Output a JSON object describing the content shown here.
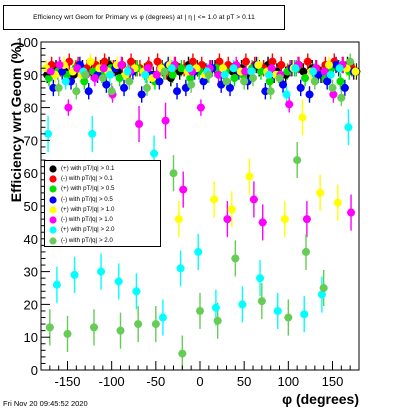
{
  "chart_data": {
    "type": "scatter",
    "title": "Efficiency wrt Geom for Primary vs φ (degrees) at | η | <= 1.0 at pT > 0.11",
    "xlabel": "φ (degrees)",
    "ylabel": "Efficiency wrt Geom (%)",
    "xlim": [
      -180,
      180
    ],
    "ylim": [
      0,
      100
    ],
    "xticks": [
      -150,
      -100,
      -50,
      0,
      50,
      100,
      150
    ],
    "yticks": [
      0,
      10,
      20,
      30,
      40,
      50,
      60,
      70,
      80,
      90,
      100
    ],
    "legend_position": "left-middle",
    "grid": false,
    "series": [
      {
        "name": "(+) with pT/|q| > 0.1",
        "color": "#000000",
        "marker": "circle",
        "x": [
          -173,
          -163,
          -153,
          -143,
          -133,
          -123,
          -113,
          -103,
          -93,
          -83,
          -73,
          -63,
          -53,
          -43,
          -33,
          -23,
          -13,
          -3,
          7,
          17,
          27,
          37,
          47,
          57,
          67,
          77,
          87,
          97,
          107,
          117,
          127,
          137,
          147,
          157,
          167,
          177
        ],
        "y": [
          90,
          92,
          91,
          90,
          92,
          91,
          92,
          93,
          91,
          90,
          92,
          91,
          90,
          92,
          89,
          91,
          93,
          92,
          91,
          92,
          90,
          91,
          92,
          90,
          92,
          93,
          91,
          90,
          92,
          91,
          92,
          90,
          91,
          92,
          93,
          91
        ]
      },
      {
        "name": "(-) with pT/|q| > 0.1",
        "color": "#ff0000",
        "marker": "circle",
        "x": [
          -168,
          -158,
          -148,
          -138,
          -128,
          -118,
          -108,
          -98,
          -88,
          -78,
          -68,
          -58,
          -48,
          -38,
          -28,
          -18,
          -8,
          2,
          12,
          22,
          32,
          42,
          52,
          62,
          72,
          82,
          92,
          102,
          112,
          122,
          132,
          142,
          152,
          162,
          172
        ],
        "y": [
          93,
          92,
          94,
          93,
          92,
          93,
          94,
          92,
          93,
          94,
          92,
          93,
          94,
          91,
          93,
          92,
          94,
          93,
          92,
          94,
          93,
          92,
          94,
          93,
          92,
          94,
          93,
          92,
          93,
          94,
          92,
          93,
          94,
          93,
          92
        ]
      },
      {
        "name": "(+) with pT/|q| > 0.5",
        "color": "#00e000",
        "marker": "circle",
        "x": [
          -171,
          -161,
          -151,
          -141,
          -131,
          -121,
          -111,
          -101,
          -91,
          -81,
          -71,
          -61,
          -51,
          -41,
          -31,
          -21,
          -11,
          -1,
          9,
          19,
          29,
          39,
          49,
          59,
          69,
          79,
          89,
          99,
          109,
          119,
          129,
          139,
          149,
          159,
          169
        ],
        "y": [
          89,
          91,
          90,
          92,
          88,
          91,
          90,
          92,
          89,
          91,
          92,
          90,
          88,
          91,
          90,
          92,
          89,
          91,
          90,
          92,
          91,
          89,
          90,
          92,
          91,
          88,
          90,
          91,
          92,
          89,
          91,
          90,
          92,
          88,
          91
        ]
      },
      {
        "name": "(-) with pT/|q| > 0.5",
        "color": "#0000ff",
        "marker": "circle",
        "x": [
          -166,
          -156,
          -146,
          -136,
          -126,
          -116,
          -106,
          -96,
          -86,
          -76,
          -66,
          -56,
          -46,
          -36,
          -26,
          -16,
          -6,
          4,
          14,
          24,
          34,
          44,
          54,
          64,
          74,
          84,
          94,
          104,
          114,
          124,
          134,
          144,
          154,
          164,
          174
        ],
        "y": [
          86,
          91,
          88,
          93,
          85,
          90,
          87,
          92,
          86,
          91,
          84,
          90,
          88,
          93,
          85,
          86,
          91,
          88,
          92,
          87,
          86,
          91,
          88,
          93,
          85,
          90,
          87,
          92,
          86,
          84,
          90,
          88,
          93,
          86,
          91
        ]
      },
      {
        "name": "(+) with pT/|q| > 1.0",
        "color": "#ffff00",
        "marker": "circle",
        "x": [
          -174,
          -164,
          -154,
          -144,
          -134,
          -124,
          -114,
          -104,
          -94,
          -84,
          -74,
          -64,
          -54,
          -44,
          -34,
          -24,
          -14,
          -4,
          6,
          16,
          26,
          36,
          46,
          56,
          66,
          76,
          86,
          96,
          106,
          116,
          126,
          136,
          146,
          156,
          166,
          176
        ],
        "y": [
          92,
          90,
          93,
          91,
          90,
          94,
          92,
          91,
          93,
          90,
          92,
          91,
          89,
          92,
          93,
          46,
          91,
          92,
          90,
          52,
          92,
          49,
          91,
          59,
          93,
          91,
          90,
          46,
          92,
          77,
          91,
          54,
          93,
          51,
          92,
          91
        ]
      },
      {
        "name": "(-) with pT/|q| > 1.0",
        "color": "#ff00ff",
        "marker": "circle",
        "x": [
          -169,
          -159,
          -149,
          -139,
          -129,
          -119,
          -109,
          -99,
          -89,
          -79,
          -69,
          -59,
          -49,
          -39,
          -29,
          -19,
          -9,
          1,
          11,
          21,
          31,
          41,
          51,
          61,
          71,
          81,
          91,
          101,
          111,
          121,
          131,
          141,
          151,
          161,
          171
        ],
        "y": [
          91,
          93,
          80,
          92,
          90,
          89,
          92,
          84,
          93,
          91,
          75,
          92,
          90,
          76,
          93,
          55,
          91,
          80,
          92,
          90,
          46,
          93,
          91,
          52,
          45,
          92,
          90,
          81,
          93,
          46,
          92,
          91,
          84,
          93,
          48
        ]
      },
      {
        "name": "(+) with pT/|q| > 2.0",
        "color": "#00ffff",
        "marker": "circle",
        "x": [
          -172,
          -162,
          -152,
          -142,
          -132,
          -122,
          -112,
          -102,
          -92,
          -82,
          -72,
          -62,
          -52,
          -42,
          -32,
          -22,
          -12,
          -2,
          8,
          18,
          28,
          38,
          48,
          58,
          68,
          78,
          88,
          98,
          108,
          118,
          128,
          138,
          148,
          158,
          168
        ],
        "y": [
          72,
          26,
          88,
          29,
          91,
          72,
          30,
          90,
          27,
          91,
          24,
          90,
          66,
          16,
          92,
          31,
          92,
          36,
          91,
          19,
          90,
          92,
          20,
          91,
          28,
          90,
          18,
          84,
          92,
          17,
          91,
          23,
          90,
          92,
          74
        ]
      },
      {
        "name": "(-) with pT/|q| > 2.0",
        "color": "#66cc55",
        "marker": "circle",
        "x": [
          -170,
          -160,
          -150,
          -140,
          -130,
          -120,
          -110,
          -100,
          -90,
          -80,
          -70,
          -60,
          -50,
          -40,
          -30,
          -20,
          -10,
          0,
          10,
          20,
          30,
          40,
          50,
          60,
          70,
          80,
          90,
          100,
          110,
          120,
          130,
          140,
          150,
          160,
          170
        ],
        "y": [
          13,
          86,
          11,
          85,
          90,
          13,
          89,
          85,
          12,
          88,
          14,
          86,
          14,
          91,
          60,
          5,
          87,
          18,
          90,
          15,
          88,
          34,
          88,
          89,
          21,
          85,
          89,
          16,
          64,
          36,
          88,
          25,
          86,
          83,
          94
        ]
      }
    ]
  },
  "footer": {
    "timestamp": "Fri Nov 20 09:45:52 2020"
  }
}
